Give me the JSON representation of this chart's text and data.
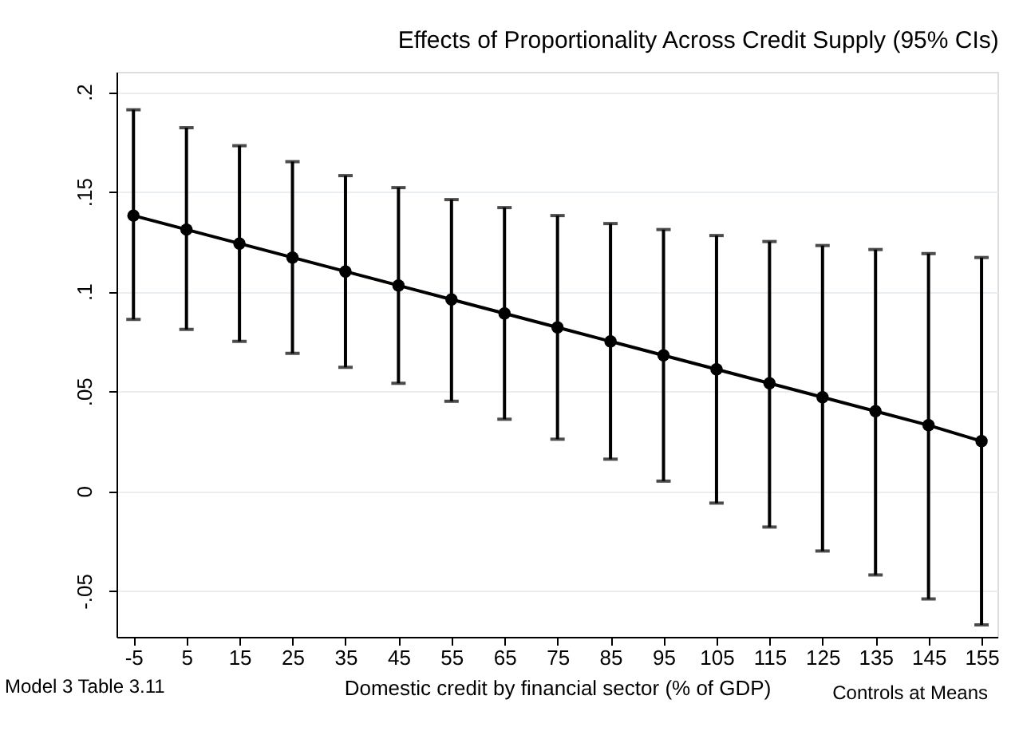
{
  "chart_data": {
    "type": "line",
    "title": "Effects of Proportionality Across Credit Supply (95% CIs)",
    "xlabel": "Domestic credit by financial sector (% of GDP)",
    "annotations": [
      "Model 3 Table 3.11",
      "Controls at Means"
    ],
    "x": [
      -5,
      5,
      15,
      25,
      35,
      45,
      55,
      65,
      75,
      85,
      95,
      105,
      115,
      125,
      135,
      145,
      155
    ],
    "series": [
      {
        "color": "#000000",
        "values": [
          0.138,
          0.131,
          0.124,
          0.117,
          0.11,
          0.103,
          0.096,
          0.089,
          0.082,
          0.075,
          0.068,
          0.061,
          0.054,
          0.047,
          0.04,
          0.033,
          0.025
        ],
        "errors": [
          [
            0.086,
            0.191
          ],
          [
            0.081,
            0.182
          ],
          [
            0.075,
            0.173
          ],
          [
            0.069,
            0.165
          ],
          [
            0.062,
            0.158
          ],
          [
            0.054,
            0.152
          ],
          [
            0.045,
            0.146
          ],
          [
            0.036,
            0.142
          ],
          [
            0.026,
            0.138
          ],
          [
            0.016,
            0.134
          ],
          [
            0.005,
            0.131
          ],
          [
            -0.006,
            0.128
          ],
          [
            -0.018,
            0.125
          ],
          [
            -0.03,
            0.123
          ],
          [
            -0.042,
            0.121
          ],
          [
            -0.054,
            0.119
          ],
          [
            -0.067,
            0.117
          ]
        ]
      }
    ],
    "xlim": [
      -8.2,
      158
    ],
    "xticks": [
      -5,
      5,
      15,
      25,
      35,
      45,
      55,
      65,
      75,
      85,
      95,
      105,
      115,
      125,
      135,
      145,
      155
    ],
    "ylim": [
      -0.073,
      0.21
    ],
    "yticks": [
      {
        "value": -0.05,
        "label": "-.05"
      },
      {
        "value": 0,
        "label": "0"
      },
      {
        "value": 0.05,
        "label": ".05"
      },
      {
        "value": 0.1,
        "label": ".1"
      },
      {
        "value": 0.15,
        "label": ".15"
      },
      {
        "value": 0.2,
        "label": ".2"
      }
    ],
    "grid": "y",
    "marker": "circle",
    "line_style": "solid"
  }
}
